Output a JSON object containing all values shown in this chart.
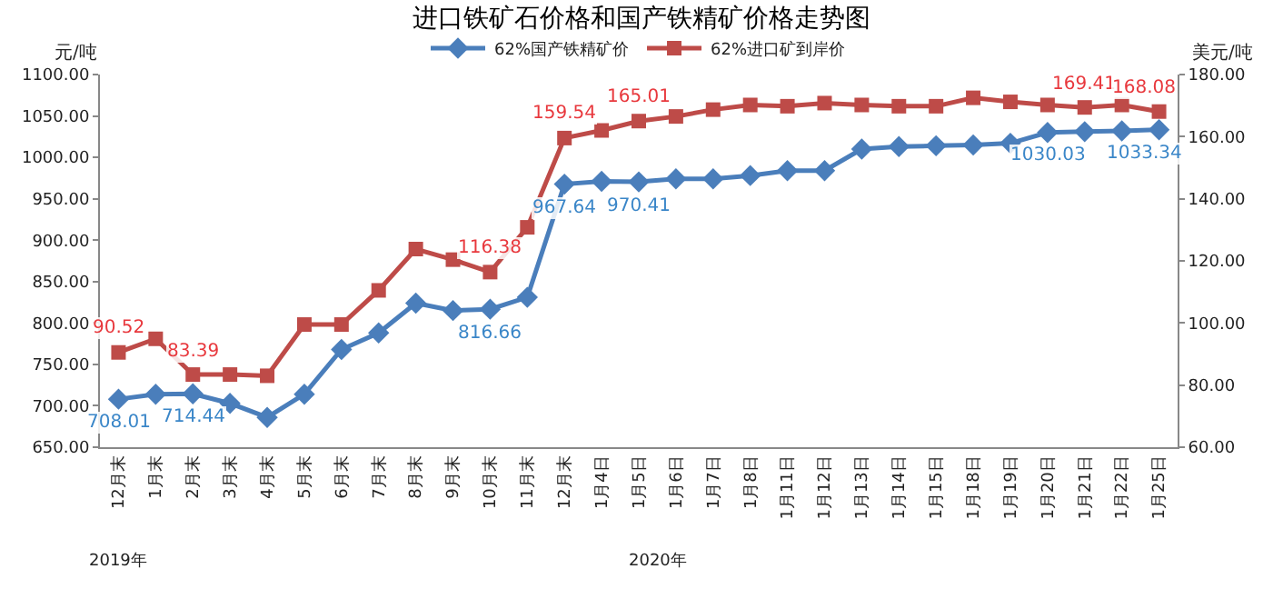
{
  "chart_data": {
    "type": "line",
    "title": "进口铁矿石价格和国产铁精矿价格走势图",
    "ylabel": "元/吨",
    "y2label": "美元/吨",
    "categories": [
      "12月末",
      "1月末",
      "2月末",
      "3月末",
      "4月末",
      "5月末",
      "6月末",
      "7月末",
      "8月末",
      "9月末",
      "10月末",
      "11月末",
      "12月末",
      "1月4日",
      "1月5日",
      "1月6日",
      "1月7日",
      "1月8日",
      "1月11日",
      "1月12日",
      "1月13日",
      "1月14日",
      "1月15日",
      "1月18日",
      "1月19日",
      "1月20日",
      "1月21日",
      "1月22日",
      "1月25日"
    ],
    "series": [
      {
        "name": "62%国产铁精矿价",
        "color": "#4a7ebb",
        "marker": "diamond",
        "values": [
          708.01,
          714,
          714.44,
          703,
          686,
          714,
          768,
          788,
          824,
          815,
          816.66,
          831,
          967.64,
          971,
          970.41,
          974,
          974,
          978,
          984,
          984,
          1010,
          1013,
          1014,
          1015,
          1017,
          1030.03,
          1031,
          1032,
          1033.34
        ],
        "value_labels": [
          "708.01",
          null,
          "714.44",
          null,
          null,
          null,
          null,
          null,
          null,
          null,
          "816.66",
          null,
          "967.64",
          null,
          "970.41",
          null,
          null,
          null,
          null,
          null,
          null,
          null,
          null,
          null,
          null,
          "1030.03",
          null,
          null,
          "1033.34"
        ]
      },
      {
        "name": "62%进口矿到岸价",
        "color": "#be4b48",
        "marker": "square",
        "axis": "y2",
        "values": [
          90.52,
          94.9,
          83.39,
          83.4,
          83.0,
          99.5,
          99.5,
          110.5,
          123.8,
          120.4,
          116.38,
          130.8,
          159.54,
          162,
          165.01,
          166.5,
          168.7,
          170.2,
          169.8,
          170.8,
          170.2,
          169.8,
          169.8,
          172.5,
          171.2,
          170.2,
          169.41,
          170.2,
          168.08
        ],
        "value_labels": [
          "90.52",
          null,
          "83.39",
          null,
          null,
          null,
          null,
          null,
          null,
          null,
          "116.38",
          null,
          "159.54",
          null,
          "165.01",
          null,
          null,
          null,
          null,
          null,
          null,
          null,
          null,
          null,
          null,
          null,
          "169.41",
          null,
          "168.08"
        ]
      }
    ],
    "ylim": [
      650,
      1100
    ],
    "yticks": [
      {
        "value": 650,
        "label": "650.00"
      },
      {
        "value": 700,
        "label": "700.00"
      },
      {
        "value": 750,
        "label": "750.00"
      },
      {
        "value": 800,
        "label": "800.00"
      },
      {
        "value": 850,
        "label": "850.00"
      },
      {
        "value": 900,
        "label": "900.00"
      },
      {
        "value": 950,
        "label": "950.00"
      },
      {
        "value": 1000,
        "label": "1000.00"
      },
      {
        "value": 1050,
        "label": "1050.00"
      },
      {
        "value": 1100,
        "label": "1100.00"
      }
    ],
    "y2lim": [
      60,
      180
    ],
    "y2ticks": [
      {
        "value": 60,
        "label": "60.00"
      },
      {
        "value": 80,
        "label": "80.00"
      },
      {
        "value": 100,
        "label": "100.00"
      },
      {
        "value": 120,
        "label": "120.00"
      },
      {
        "value": 140,
        "label": "140.00"
      },
      {
        "value": 160,
        "label": "160.00"
      },
      {
        "value": 180,
        "label": "180.00"
      }
    ],
    "annotations": [
      "2019年",
      "2020年"
    ],
    "legend": "top"
  }
}
